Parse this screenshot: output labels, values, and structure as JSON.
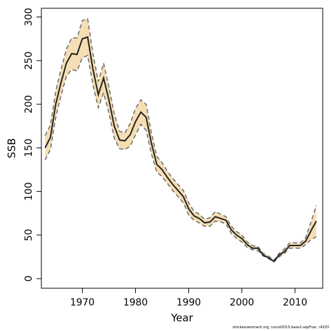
{
  "chart_data": {
    "type": "line",
    "xlabel": "Year",
    "ylabel": "SSB",
    "xlim": [
      1962.3,
      2015.2
    ],
    "ylim": [
      -11,
      310
    ],
    "x_ticks": [
      1970,
      1980,
      1990,
      2000,
      2010
    ],
    "y_ticks": [
      0,
      50,
      100,
      150,
      200,
      250,
      300
    ],
    "grid": false,
    "colors": {
      "band": "#f5deb3",
      "line": "#222222",
      "bounds": "#6b6b6b",
      "axis": "#000000"
    },
    "x": [
      1963,
      1964,
      1965,
      1966,
      1967,
      1968,
      1969,
      1970,
      1971,
      1972,
      1973,
      1974,
      1975,
      1976,
      1977,
      1978,
      1979,
      1980,
      1981,
      1982,
      1983,
      1984,
      1985,
      1986,
      1987,
      1988,
      1989,
      1990,
      1991,
      1992,
      1993,
      1994,
      1995,
      1996,
      1997,
      1998,
      1999,
      2000,
      2001,
      2002,
      2003,
      2004,
      2005,
      2006,
      2007,
      2008,
      2009,
      2010,
      2011,
      2012,
      2013,
      2014
    ],
    "series": [
      {
        "values": [
          150,
          162,
          200,
          225,
          247,
          258,
          257,
          275,
          277,
          240,
          211,
          230,
          205,
          175,
          159,
          158,
          165,
          180,
          191,
          185,
          155,
          131,
          125,
          116,
          108,
          101,
          94,
          80,
          72,
          69,
          64,
          65,
          71,
          69,
          67,
          56,
          50,
          46,
          39,
          35,
          35,
          27,
          24,
          20,
          27,
          31,
          38,
          38,
          38,
          43,
          55,
          66
        ]
      }
    ],
    "lower": [
      136,
      148,
      185,
      210,
      232,
      240,
      238,
      253,
      256,
      222,
      196,
      213,
      190,
      161,
      149,
      148,
      152,
      165,
      177,
      170,
      143,
      122,
      117,
      109,
      101,
      94,
      87,
      73,
      67,
      64,
      60,
      60,
      66,
      65,
      63,
      52,
      46,
      42,
      36,
      33,
      32,
      26,
      23,
      19,
      25,
      29,
      35,
      35,
      35,
      39,
      45,
      48
    ],
    "upper": [
      164,
      176,
      215,
      240,
      263,
      276,
      276,
      296,
      298,
      258,
      226,
      247,
      220,
      189,
      169,
      167,
      178,
      195,
      205,
      200,
      167,
      140,
      133,
      123,
      115,
      108,
      101,
      87,
      77,
      74,
      68,
      70,
      77,
      74,
      71,
      60,
      54,
      50,
      42,
      38,
      37,
      29,
      26,
      21,
      29,
      34,
      41,
      41,
      41,
      47,
      65,
      84
    ],
    "footnote": "stockassessment.org, nscod2015-base2-sepFvar, r4203"
  }
}
